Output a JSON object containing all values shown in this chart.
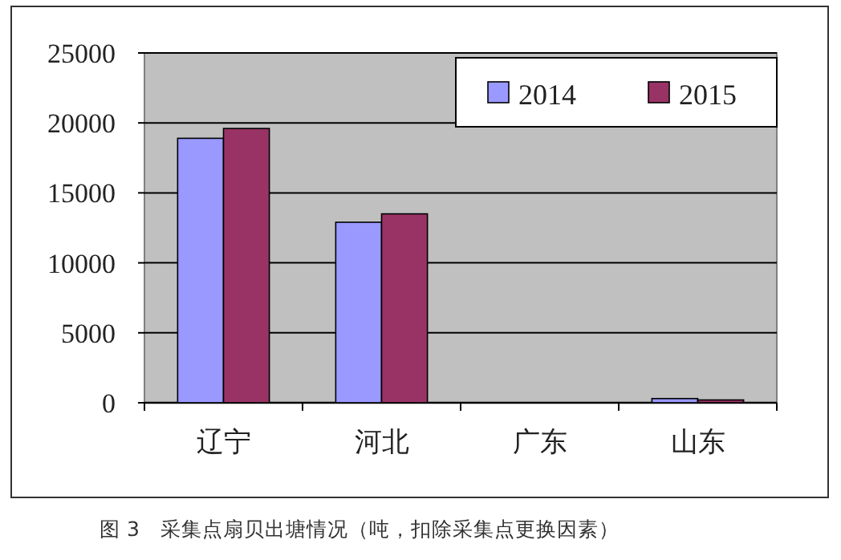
{
  "chart_data": {
    "type": "bar",
    "title": "图 3　采集点扇贝出塘情况（吨，扣除采集点更换因素）",
    "categories": [
      "辽宁",
      "河北",
      "广东",
      "山东"
    ],
    "series": [
      {
        "name": "2014",
        "color": "#9999ff",
        "values": [
          18900,
          12900,
          0,
          300
        ]
      },
      {
        "name": "2015",
        "color": "#993366",
        "values": [
          19600,
          13500,
          0,
          200
        ]
      }
    ],
    "ylim": [
      0,
      25000
    ],
    "yticks": [
      0,
      5000,
      10000,
      15000,
      20000,
      25000
    ],
    "grid": "y",
    "legend": "top right"
  }
}
